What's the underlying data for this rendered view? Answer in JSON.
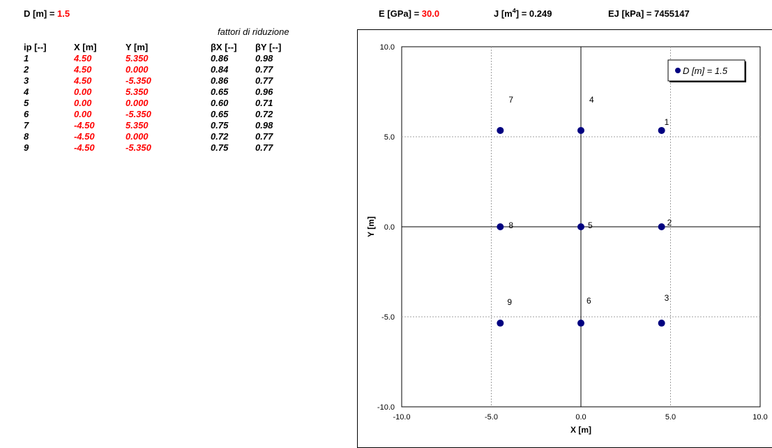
{
  "header": {
    "d_label": "D [m] = ",
    "d_value": "1.5",
    "e_label": "E [GPa] = ",
    "e_value": "30.0",
    "j_label_pre": "J [m",
    "j_label_sup": "4",
    "j_label_post": "] = 0.249",
    "ej_label": "EJ [kPa] = 7455147"
  },
  "table": {
    "factors_title": "fattori di riduzione",
    "headers": {
      "ip": "ip [--]",
      "x": "X [m]",
      "y": "Y [m]",
      "bx": "βX [--]",
      "by": "βY [--]"
    },
    "rows": [
      {
        "ip": "1",
        "x": "4.50",
        "y": "5.350",
        "bx": "0.86",
        "by": "0.98"
      },
      {
        "ip": "2",
        "x": "4.50",
        "y": "0.000",
        "bx": "0.84",
        "by": "0.77"
      },
      {
        "ip": "3",
        "x": "4.50",
        "y": "-5.350",
        "bx": "0.86",
        "by": "0.77"
      },
      {
        "ip": "4",
        "x": "0.00",
        "y": "5.350",
        "bx": "0.65",
        "by": "0.96"
      },
      {
        "ip": "5",
        "x": "0.00",
        "y": "0.000",
        "bx": "0.60",
        "by": "0.71"
      },
      {
        "ip": "6",
        "x": "0.00",
        "y": "-5.350",
        "bx": "0.65",
        "by": "0.72"
      },
      {
        "ip": "7",
        "x": "-4.50",
        "y": "5.350",
        "bx": "0.75",
        "by": "0.98"
      },
      {
        "ip": "8",
        "x": "-4.50",
        "y": "0.000",
        "bx": "0.72",
        "by": "0.77"
      },
      {
        "ip": "9",
        "x": "-4.50",
        "y": "-5.350",
        "bx": "0.75",
        "by": "0.77"
      }
    ]
  },
  "chart_data": {
    "type": "scatter",
    "xlabel": "X [m]",
    "ylabel": "Y [m]",
    "xlim": [
      -10,
      10
    ],
    "ylim": [
      -10,
      10
    ],
    "xticks": [
      "-10.0",
      "-5.0",
      "0.0",
      "5.0",
      "10.0"
    ],
    "yticks": [
      "10.0",
      "5.0",
      "0.0",
      "-5.0",
      "-10.0"
    ],
    "grid": true,
    "legend_position": "top-right",
    "series": [
      {
        "name": "D [m] = 1.5",
        "color": "#000080",
        "points": [
          {
            "label": "1",
            "x": 4.5,
            "y": 5.35
          },
          {
            "label": "2",
            "x": 4.5,
            "y": 0.0
          },
          {
            "label": "3",
            "x": 4.5,
            "y": -5.35
          },
          {
            "label": "4",
            "x": 0.0,
            "y": 5.35
          },
          {
            "label": "5",
            "x": 0.0,
            "y": 0.0
          },
          {
            "label": "6",
            "x": 0.0,
            "y": -5.35
          },
          {
            "label": "7",
            "x": -4.5,
            "y": 5.35
          },
          {
            "label": "8",
            "x": -4.5,
            "y": 0.0
          },
          {
            "label": "9",
            "x": -4.5,
            "y": -5.35
          }
        ]
      }
    ]
  }
}
